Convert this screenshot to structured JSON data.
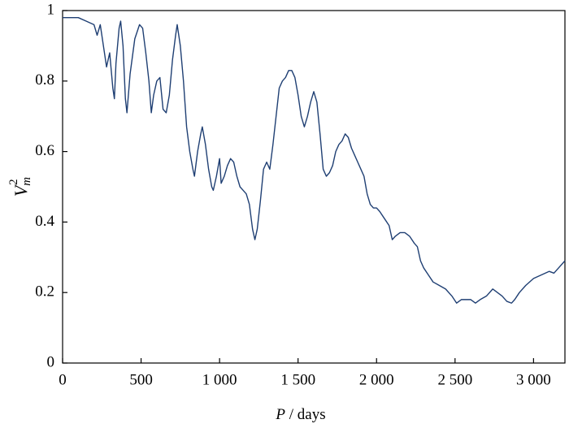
{
  "chart_data": {
    "type": "line",
    "xlabel": {
      "symbol": "P",
      "unit": "/ days"
    },
    "ylabel": {
      "symbol": "V",
      "sub": "m",
      "sup": "2"
    },
    "xlim": [
      0,
      3200
    ],
    "ylim": [
      0,
      1
    ],
    "xticks": [
      0,
      500,
      {
        "value": 1000,
        "label": "1 000"
      },
      {
        "value": 1500,
        "label": "1 500"
      },
      {
        "value": 2000,
        "label": "2 000"
      },
      {
        "value": 2500,
        "label": "2 500"
      },
      {
        "value": 3000,
        "label": "3 000"
      }
    ],
    "yticks": [
      0,
      0.2,
      0.4,
      0.6,
      0.8,
      1
    ],
    "grid": false,
    "series": [
      {
        "name": null,
        "color": "#1f3f73",
        "x": [
          0,
          50,
          100,
          150,
          200,
          220,
          240,
          260,
          280,
          300,
          320,
          330,
          340,
          360,
          370,
          385,
          400,
          410,
          430,
          460,
          490,
          510,
          530,
          550,
          565,
          580,
          600,
          620,
          640,
          660,
          680,
          700,
          720,
          730,
          750,
          770,
          790,
          810,
          830,
          840,
          860,
          880,
          890,
          910,
          930,
          950,
          960,
          980,
          1000,
          1010,
          1030,
          1050,
          1070,
          1090,
          1110,
          1130,
          1150,
          1170,
          1190,
          1210,
          1225,
          1240,
          1260,
          1280,
          1300,
          1320,
          1340,
          1360,
          1380,
          1400,
          1420,
          1440,
          1460,
          1480,
          1500,
          1520,
          1540,
          1560,
          1580,
          1600,
          1620,
          1640,
          1660,
          1680,
          1700,
          1720,
          1740,
          1760,
          1780,
          1800,
          1820,
          1840,
          1860,
          1880,
          1900,
          1920,
          1940,
          1960,
          1980,
          2000,
          2020,
          2050,
          2080,
          2100,
          2120,
          2150,
          2180,
          2210,
          2240,
          2260,
          2280,
          2300,
          2330,
          2360,
          2400,
          2440,
          2480,
          2510,
          2540,
          2570,
          2600,
          2630,
          2660,
          2700,
          2740,
          2770,
          2800,
          2830,
          2860,
          2880,
          2910,
          2950,
          3000,
          3050,
          3100,
          3130,
          3160,
          3200
        ],
        "values": [
          0.98,
          0.98,
          0.98,
          0.97,
          0.96,
          0.93,
          0.96,
          0.9,
          0.84,
          0.88,
          0.78,
          0.75,
          0.85,
          0.95,
          0.97,
          0.9,
          0.75,
          0.71,
          0.82,
          0.92,
          0.96,
          0.95,
          0.88,
          0.8,
          0.71,
          0.76,
          0.8,
          0.81,
          0.72,
          0.71,
          0.76,
          0.86,
          0.93,
          0.96,
          0.9,
          0.8,
          0.67,
          0.6,
          0.55,
          0.53,
          0.6,
          0.65,
          0.67,
          0.62,
          0.55,
          0.5,
          0.49,
          0.53,
          0.58,
          0.51,
          0.53,
          0.56,
          0.58,
          0.57,
          0.53,
          0.5,
          0.49,
          0.48,
          0.45,
          0.38,
          0.35,
          0.38,
          0.46,
          0.55,
          0.57,
          0.55,
          0.62,
          0.7,
          0.78,
          0.8,
          0.81,
          0.83,
          0.83,
          0.81,
          0.76,
          0.7,
          0.67,
          0.7,
          0.74,
          0.77,
          0.74,
          0.65,
          0.55,
          0.53,
          0.54,
          0.56,
          0.6,
          0.62,
          0.63,
          0.65,
          0.64,
          0.61,
          0.59,
          0.57,
          0.55,
          0.53,
          0.48,
          0.45,
          0.44,
          0.44,
          0.43,
          0.41,
          0.39,
          0.35,
          0.36,
          0.37,
          0.37,
          0.36,
          0.34,
          0.33,
          0.29,
          0.27,
          0.25,
          0.23,
          0.22,
          0.21,
          0.19,
          0.17,
          0.18,
          0.18,
          0.18,
          0.17,
          0.18,
          0.19,
          0.21,
          0.2,
          0.19,
          0.175,
          0.17,
          0.18,
          0.2,
          0.22,
          0.24,
          0.25,
          0.26,
          0.255,
          0.27,
          0.29
        ]
      }
    ]
  }
}
